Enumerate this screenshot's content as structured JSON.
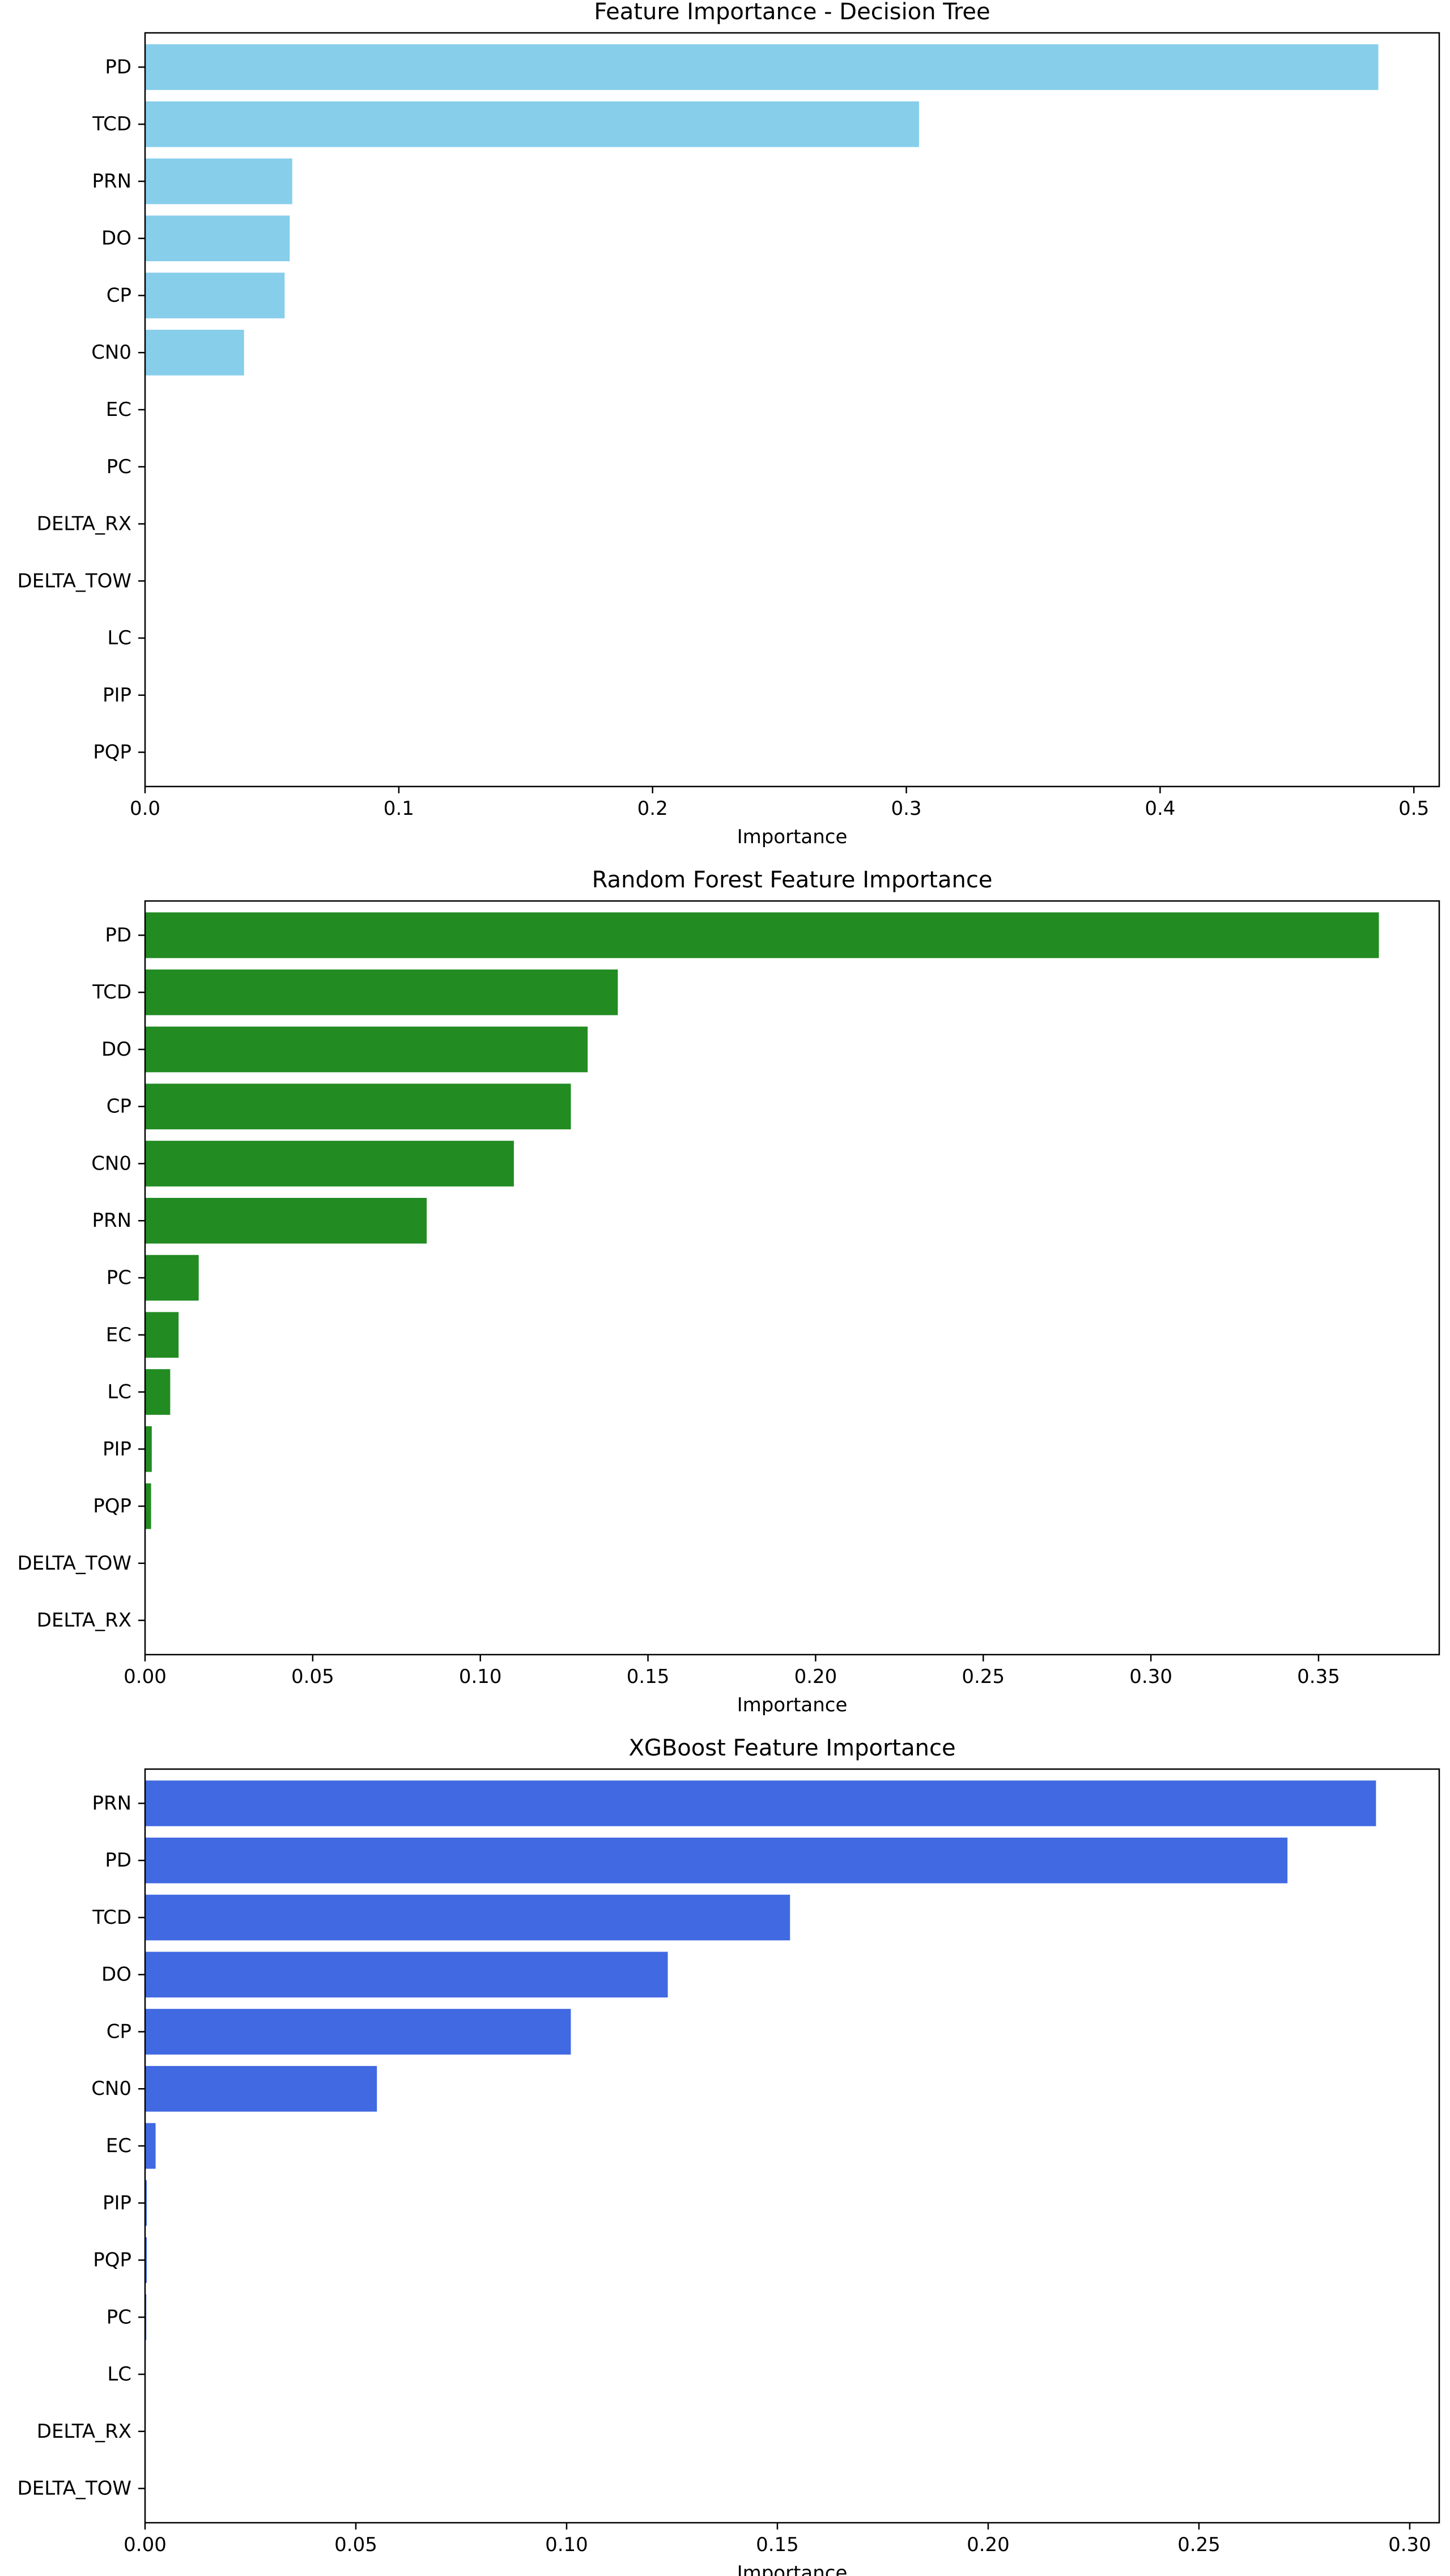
{
  "chart_data": [
    {
      "type": "bar",
      "orientation": "horizontal",
      "title": "Feature Importance - Decision Tree",
      "xlabel": "Importance",
      "ylabel": "",
      "xlim": [
        0,
        0.51
      ],
      "xticks": [
        0.0,
        0.1,
        0.2,
        0.3,
        0.4,
        0.5
      ],
      "xtick_labels": [
        "0.0",
        "0.1",
        "0.2",
        "0.3",
        "0.4",
        "0.5"
      ],
      "categories": [
        "PD",
        "TCD",
        "PRN",
        "DO",
        "CP",
        "CN0",
        "EC",
        "PC",
        "DELTA_RX",
        "DELTA_TOW",
        "LC",
        "PIP",
        "PQP"
      ],
      "values": [
        0.486,
        0.305,
        0.058,
        0.057,
        0.055,
        0.039,
        0,
        0,
        0,
        0,
        0,
        0,
        0
      ],
      "color": "#87CEEB",
      "grid": false
    },
    {
      "type": "bar",
      "orientation": "horizontal",
      "title": "Random Forest Feature Importance",
      "xlabel": "Importance",
      "ylabel": "",
      "xlim": [
        0,
        0.386
      ],
      "xticks": [
        0.0,
        0.05,
        0.1,
        0.15,
        0.2,
        0.25,
        0.3,
        0.35
      ],
      "xtick_labels": [
        "0.00",
        "0.05",
        "0.10",
        "0.15",
        "0.20",
        "0.25",
        "0.30",
        "0.35"
      ],
      "categories": [
        "PD",
        "TCD",
        "DO",
        "CP",
        "CN0",
        "PRN",
        "PC",
        "EC",
        "LC",
        "PIP",
        "PQP",
        "DELTA_TOW",
        "DELTA_RX"
      ],
      "values": [
        0.368,
        0.141,
        0.132,
        0.127,
        0.11,
        0.084,
        0.016,
        0.01,
        0.0075,
        0.002,
        0.0018,
        0,
        0
      ],
      "color": "#228B22",
      "grid": false
    },
    {
      "type": "bar",
      "orientation": "horizontal",
      "title": "XGBoost Feature Importance",
      "xlabel": "Importance",
      "ylabel": "",
      "xlim": [
        0,
        0.307
      ],
      "xticks": [
        0.0,
        0.05,
        0.1,
        0.15,
        0.2,
        0.25,
        0.3
      ],
      "xtick_labels": [
        "0.00",
        "0.05",
        "0.10",
        "0.15",
        "0.20",
        "0.25",
        "0.30"
      ],
      "categories": [
        "PRN",
        "PD",
        "TCD",
        "DO",
        "CP",
        "CN0",
        "EC",
        "PIP",
        "PQP",
        "PC",
        "LC",
        "DELTA_RX",
        "DELTA_TOW"
      ],
      "values": [
        0.292,
        0.271,
        0.153,
        0.124,
        0.101,
        0.055,
        0.0025,
        0.0004,
        0.0004,
        0.0003,
        0,
        0,
        0
      ],
      "color": "#4169E1",
      "grid": false
    }
  ]
}
